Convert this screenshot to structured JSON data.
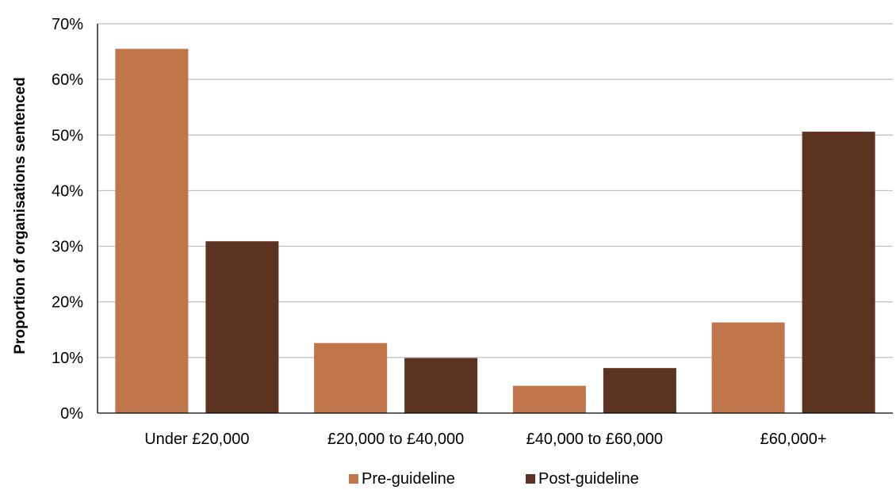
{
  "chart_data": {
    "type": "bar",
    "categories": [
      "Under £20,000",
      "£20,000 to £40,000",
      "£40,000 to £60,000",
      "£60,000+"
    ],
    "series": [
      {
        "name": "Pre-guideline",
        "values": [
          65.5,
          12.6,
          4.9,
          16.3
        ],
        "color": "#C0764A"
      },
      {
        "name": "Post-guideline",
        "values": [
          30.9,
          9.9,
          8.1,
          50.6
        ],
        "color": "#5C3321"
      }
    ],
    "title": "",
    "xlabel": "",
    "ylabel": "Proportion of organisations sentenced",
    "ylim": [
      0,
      70
    ],
    "yticks": [
      0,
      10,
      20,
      30,
      40,
      50,
      60,
      70
    ],
    "ytick_labels": [
      "0%",
      "10%",
      "20%",
      "30%",
      "40%",
      "50%",
      "60%",
      "70%"
    ],
    "grid": true,
    "legend_position": "bottom"
  },
  "colors": {
    "gridline": "#BFBFBF",
    "axis": "#000000"
  }
}
